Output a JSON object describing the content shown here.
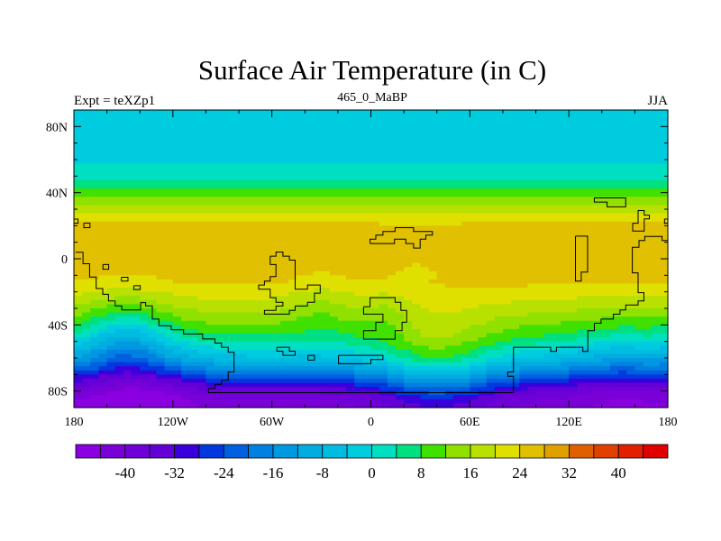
{
  "chart_data": {
    "type": "heatmap",
    "title": "Surface Air Temperature (in C)",
    "left_string": "Expt = teXZp1",
    "center_string": "465_0_MaBP",
    "right_string": "JJA",
    "x_range": [
      -180,
      180
    ],
    "y_range": [
      -90,
      90
    ],
    "x_ticks": [
      {
        "value": -180,
        "label": "180"
      },
      {
        "value": -120,
        "label": "120W"
      },
      {
        "value": -60,
        "label": "60W"
      },
      {
        "value": 0,
        "label": "0"
      },
      {
        "value": 60,
        "label": "60E"
      },
      {
        "value": 120,
        "label": "120E"
      },
      {
        "value": 180,
        "label": "180"
      }
    ],
    "y_ticks": [
      {
        "value": 80,
        "label": "80N"
      },
      {
        "value": 40,
        "label": "40N"
      },
      {
        "value": 0,
        "label": "0"
      },
      {
        "value": -40,
        "label": "40S"
      },
      {
        "value": -80,
        "label": "80S"
      }
    ],
    "colorbar": {
      "levels": [
        -44,
        -40,
        -36,
        -32,
        -28,
        -24,
        -20,
        -16,
        -12,
        -8,
        -4,
        0,
        4,
        8,
        12,
        16,
        20,
        24,
        28,
        32,
        36,
        40,
        44
      ],
      "labels": [
        "-40",
        "-32",
        "-24",
        "-16",
        "-8",
        "0",
        "8",
        "16",
        "24",
        "32",
        "40"
      ],
      "label_values": [
        -40,
        -32,
        -24,
        -16,
        -8,
        0,
        8,
        16,
        24,
        32,
        40
      ],
      "colors": [
        "#8a00e0",
        "#7a00d8",
        "#7000d8",
        "#6200d6",
        "#3a00dc",
        "#0038e0",
        "#0060e0",
        "#0080e0",
        "#0098e0",
        "#00ace0",
        "#00bce0",
        "#00cce0",
        "#00e0c0",
        "#00e080",
        "#40e000",
        "#90e000",
        "#b8e000",
        "#e0e000",
        "#e0c000",
        "#e0a000",
        "#e06000",
        "#e04000",
        "#e02000",
        "#e00000"
      ]
    },
    "zonal_profile": {
      "lat": [
        90,
        85,
        80,
        75,
        70,
        65,
        60,
        55,
        50,
        45,
        40,
        35,
        30,
        25,
        20,
        15,
        10,
        5,
        0,
        -5,
        -10,
        -15,
        -20,
        -25,
        -30,
        -35,
        -40,
        -45,
        -50,
        -55,
        -60,
        -65,
        -70,
        -75,
        -80,
        -85,
        -90
      ],
      "temp": [
        -2,
        -2,
        -2,
        -2,
        -2,
        -2,
        -1,
        1,
        3,
        6,
        10,
        14,
        18,
        22,
        25,
        26,
        26,
        26,
        26,
        25.5,
        25,
        24.5,
        22,
        20,
        17.5,
        15,
        12,
        9,
        5,
        0,
        -5,
        -12,
        -20,
        -28,
        -35,
        -40,
        -42
      ]
    },
    "regional_anomalies": [
      {
        "lon": -150,
        "lat": -50,
        "radius": 25,
        "delta": -12
      },
      {
        "lon": -140,
        "lat": -75,
        "radius": 35,
        "delta": -8
      },
      {
        "lon": 40,
        "lat": -70,
        "radius": 35,
        "delta": 14
      },
      {
        "lon": 150,
        "lat": -65,
        "radius": 30,
        "delta": -6
      },
      {
        "lon": 30,
        "lat": -5,
        "radius": 25,
        "delta": -2
      },
      {
        "lon": -30,
        "lat": -30,
        "radius": 20,
        "delta": -4
      },
      {
        "lon": 10,
        "lat": -35,
        "radius": 15,
        "delta": -4
      }
    ],
    "coastlines": [
      [
        [
          -179,
          4
        ],
        [
          -174.5,
          4
        ],
        [
          -174.5,
          -3
        ],
        [
          -170.5,
          -3
        ],
        [
          -170.5,
          -11
        ],
        [
          -166.5,
          -11
        ],
        [
          -166.5,
          -18
        ],
        [
          -162.5,
          -18
        ],
        [
          -162.5,
          -21.5
        ],
        [
          -159,
          -21.5
        ],
        [
          -159,
          -25.5
        ],
        [
          -155,
          -25.5
        ],
        [
          -155,
          -28.5
        ],
        [
          -151,
          -28.5
        ],
        [
          -151,
          -31
        ],
        [
          -139.5,
          -31
        ],
        [
          -139.5,
          -26.5
        ],
        [
          -136.5,
          -26.5
        ],
        [
          -136.5,
          -28.5
        ],
        [
          -132.5,
          -28.5
        ],
        [
          -132.5,
          -36.5
        ],
        [
          -128.5,
          -36.5
        ],
        [
          -128.5,
          -40.5
        ],
        [
          -121,
          -40.5
        ],
        [
          -121,
          -43
        ],
        [
          -113.5,
          -43
        ],
        [
          -113.5,
          -45.5
        ],
        [
          -102,
          -45.5
        ],
        [
          -102,
          -48.5
        ],
        [
          -94.5,
          -48.5
        ],
        [
          -94.5,
          -51
        ],
        [
          -90.5,
          -51
        ],
        [
          -90.5,
          -53.5
        ],
        [
          -86.5,
          -53.5
        ],
        [
          -86.5,
          -56.5
        ],
        [
          -83,
          -56.5
        ],
        [
          -83,
          -68.5
        ],
        [
          -86.5,
          -68.5
        ],
        [
          -86.5,
          -73.5
        ],
        [
          -90.5,
          -73.5
        ],
        [
          -90.5,
          -76
        ],
        [
          -94.5,
          -76
        ],
        [
          -94.5,
          -78.5
        ],
        [
          -98.5,
          -78.5
        ],
        [
          -98.5,
          -81
        ],
        [
          86.5,
          -81
        ],
        [
          86.5,
          -71
        ],
        [
          83,
          -71
        ],
        [
          83,
          -68.5
        ],
        [
          86.5,
          -68.5
        ],
        [
          86.5,
          -53.5
        ],
        [
          109,
          -53.5
        ],
        [
          109,
          -56
        ],
        [
          112.5,
          -56
        ],
        [
          112.5,
          -53.5
        ],
        [
          128.5,
          -53.5
        ],
        [
          128.5,
          -56
        ],
        [
          131.5,
          -56
        ],
        [
          131.5,
          -43.5
        ],
        [
          135.5,
          -43.5
        ],
        [
          135.5,
          -39
        ],
        [
          139.5,
          -39
        ],
        [
          139.5,
          -36.5
        ],
        [
          147,
          -36.5
        ],
        [
          147,
          -33.5
        ],
        [
          151,
          -33.5
        ],
        [
          151,
          -31
        ],
        [
          154.5,
          -31
        ],
        [
          154.5,
          -28
        ],
        [
          162,
          -28
        ],
        [
          162,
          -25.5
        ],
        [
          165.5,
          -25.5
        ],
        [
          165.5,
          -20.5
        ],
        [
          162,
          -20.5
        ],
        [
          162,
          -8.5
        ],
        [
          158.5,
          -8.5
        ],
        [
          158.5,
          7
        ],
        [
          162.5,
          7
        ],
        [
          162.5,
          11
        ],
        [
          166,
          11
        ],
        [
          166,
          13.5
        ],
        [
          176.5,
          13.5
        ],
        [
          176.5,
          11
        ],
        [
          180,
          11
        ],
        [
          180,
          7
        ]
      ],
      [
        [
          -0.5,
          9.2
        ],
        [
          -0.5,
          11.9
        ],
        [
          3,
          11.9
        ],
        [
          3,
          14.3
        ],
        [
          7.3,
          14.3
        ],
        [
          7.3,
          16.5
        ],
        [
          14.7,
          16.5
        ],
        [
          14.7,
          18.8
        ],
        [
          25.9,
          18.8
        ],
        [
          25.9,
          16.5
        ],
        [
          37.3,
          16.5
        ],
        [
          37.3,
          14.3
        ],
        [
          33.3,
          14.3
        ],
        [
          33.3,
          11.9
        ],
        [
          29.9,
          11.9
        ],
        [
          29.9,
          6.5
        ],
        [
          25.9,
          6.5
        ],
        [
          25.9,
          9.2
        ],
        [
          21.2,
          9.2
        ],
        [
          21.2,
          11.9
        ],
        [
          14.3,
          11.9
        ],
        [
          14.3,
          9.2
        ],
        [
          -0.5,
          9.2
        ]
      ],
      [
        [
          -61,
          1.6
        ],
        [
          -57.5,
          1.6
        ],
        [
          -57.5,
          4.1
        ],
        [
          -53.3,
          4.1
        ],
        [
          -53.3,
          1.6
        ],
        [
          -49.4,
          1.6
        ],
        [
          -49.4,
          -0.8
        ],
        [
          -45.9,
          -0.8
        ],
        [
          -45.9,
          -18.4
        ],
        [
          -38.4,
          -18.4
        ],
        [
          -38.4,
          -15.9
        ],
        [
          -30.7,
          -15.9
        ],
        [
          -30.7,
          -20.8
        ],
        [
          -34.2,
          -20.8
        ],
        [
          -34.2,
          -26.3
        ],
        [
          -38.4,
          -26.3
        ],
        [
          -38.4,
          -28.6
        ],
        [
          -45.9,
          -28.6
        ],
        [
          -45.9,
          -31.2
        ],
        [
          -49.4,
          -31.2
        ],
        [
          -49.4,
          -33.5
        ],
        [
          -64.5,
          -33.5
        ],
        [
          -64.5,
          -31.2
        ],
        [
          -57.5,
          -31.2
        ],
        [
          -57.5,
          -28.6
        ],
        [
          -53.3,
          -28.6
        ],
        [
          -53.3,
          -26.3
        ],
        [
          -57.5,
          -26.3
        ],
        [
          -57.5,
          -23.5
        ],
        [
          -61,
          -23.5
        ],
        [
          -61,
          -18.4
        ],
        [
          -68,
          -18.4
        ],
        [
          -68,
          -15.9
        ],
        [
          -64.5,
          -15.9
        ],
        [
          -64.5,
          -13.5
        ],
        [
          -61,
          -13.5
        ],
        [
          -61,
          -10.8
        ],
        [
          -57.5,
          -10.8
        ],
        [
          -57.5,
          -3.5
        ],
        [
          -61,
          -3.5
        ],
        [
          -61,
          1.6
        ]
      ],
      [
        [
          -4.4,
          -29
        ],
        [
          -0.5,
          -29
        ],
        [
          -0.5,
          -23.5
        ],
        [
          14.7,
          -23.5
        ],
        [
          14.7,
          -26.3
        ],
        [
          18.2,
          -26.3
        ],
        [
          18.2,
          -31.2
        ],
        [
          21.7,
          -31.2
        ],
        [
          21.7,
          -38.4
        ],
        [
          18.9,
          -38.4
        ],
        [
          18.9,
          -43.5
        ],
        [
          14.7,
          -43.5
        ],
        [
          14.7,
          -48.6
        ],
        [
          -4.4,
          -48.6
        ],
        [
          -4.4,
          -43.5
        ],
        [
          3,
          -43.5
        ],
        [
          3,
          -38.4
        ],
        [
          7.3,
          -38.4
        ],
        [
          7.3,
          -33.5
        ],
        [
          -4.4,
          -33.5
        ],
        [
          -4.4,
          -29
        ]
      ],
      [
        [
          135.4,
          36.8
        ],
        [
          154.5,
          36.8
        ],
        [
          154.5,
          31.4
        ],
        [
          143.2,
          31.4
        ],
        [
          143.2,
          34.3
        ],
        [
          135.4,
          34.3
        ],
        [
          135.4,
          36.8
        ]
      ],
      [
        [
          162,
          26.4
        ],
        [
          162,
          29.2
        ],
        [
          165.7,
          29.2
        ],
        [
          165.7,
          26.4
        ],
        [
          168.8,
          26.4
        ],
        [
          168.8,
          24.1
        ],
        [
          165.7,
          24.1
        ],
        [
          165.7,
          16.8
        ],
        [
          158.7,
          16.8
        ],
        [
          158.7,
          21.5
        ],
        [
          162,
          21.5
        ],
        [
          162,
          26.4
        ]
      ],
      [
        [
          124,
          13.7
        ],
        [
          131.4,
          13.7
        ],
        [
          131.4,
          -8
        ],
        [
          127.5,
          -8
        ],
        [
          127.5,
          -13.5
        ],
        [
          124,
          -13.5
        ],
        [
          124,
          13.7
        ]
      ],
      [
        [
          -174,
          21.6
        ],
        [
          -170.3,
          21.6
        ],
        [
          -170.3,
          18.8
        ],
        [
          -174,
          18.8
        ],
        [
          -174,
          21.6
        ]
      ],
      [
        [
          -162.4,
          -3.5
        ],
        [
          -158.9,
          -3.5
        ],
        [
          -158.9,
          -6.3
        ],
        [
          -162.4,
          -6.3
        ],
        [
          -162.4,
          -3.5
        ]
      ],
      [
        [
          -151.2,
          -11.2
        ],
        [
          -147.2,
          -11.2
        ],
        [
          -147.2,
          -13.5
        ],
        [
          -151.2,
          -13.5
        ],
        [
          -151.2,
          -11.2
        ]
      ],
      [
        [
          -143.7,
          -16.3
        ],
        [
          -139.8,
          -16.3
        ],
        [
          -139.8,
          -18.6
        ],
        [
          -143.7,
          -18.6
        ],
        [
          -143.7,
          -16.3
        ]
      ],
      [
        [
          -180,
          24
        ],
        [
          -177.5,
          24
        ],
        [
          -177.5,
          21.5
        ],
        [
          -180,
          21.5
        ]
      ],
      [
        [
          180,
          24
        ],
        [
          178,
          24
        ],
        [
          178,
          21.5
        ],
        [
          180,
          21.5
        ]
      ],
      [
        [
          -57,
          -53.5
        ],
        [
          -49.4,
          -53.5
        ],
        [
          -49.4,
          -55.9
        ],
        [
          -45.9,
          -55.9
        ],
        [
          -45.9,
          -58.4
        ],
        [
          -53.3,
          -58.4
        ],
        [
          -53.3,
          -55.9
        ],
        [
          -57,
          -55.9
        ],
        [
          -57,
          -53.5
        ]
      ],
      [
        [
          -38.2,
          -58.4
        ],
        [
          -34.2,
          -58.4
        ],
        [
          -34.2,
          -61.3
        ],
        [
          -38.2,
          -61.3
        ],
        [
          -38.2,
          -58.4
        ]
      ],
      [
        [
          -19.6,
          -58.4
        ],
        [
          7.3,
          -58.4
        ],
        [
          7.3,
          -61
        ],
        [
          0,
          -61
        ],
        [
          0,
          -63.5
        ],
        [
          -19.6,
          -63.5
        ],
        [
          -19.6,
          -58.4
        ]
      ]
    ]
  }
}
